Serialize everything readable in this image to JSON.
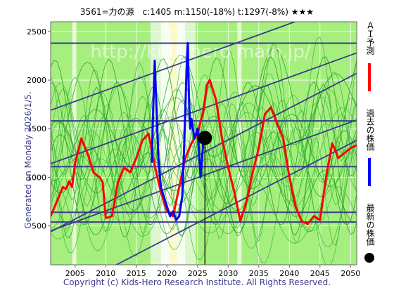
{
  "chart_data": {
    "type": "line",
    "title": "3561=力の源　c:1405  m:1150(-18%)  t:1297(-8%)  ★★★",
    "xlabel": "",
    "ylabel": "",
    "xlim": [
      2001,
      2051
    ],
    "ylim": [
      100,
      2600
    ],
    "x_ticks": [
      2005,
      2010,
      2015,
      2020,
      2025,
      2030,
      2035,
      2040,
      2045,
      2050
    ],
    "y_ticks": [
      500,
      1000,
      1500,
      2000,
      2500
    ],
    "watermark": "http://kids-hero.main.jp/",
    "horizontal_lines": [
      2380,
      1580,
      1110,
      640,
      540
    ],
    "trend_channels": [
      {
        "x": [
          2001,
          2051
        ],
        "y": [
          1690,
          2830
        ]
      },
      {
        "x": [
          2001,
          2051
        ],
        "y": [
          1140,
          2280
        ]
      },
      {
        "x": [
          2001,
          2051
        ],
        "y": [
          450,
          1590
        ]
      },
      {
        "x": [
          2001,
          2051
        ],
        "y": [
          440,
          2070
        ]
      },
      {
        "x": [
          2001,
          2051
        ],
        "y": [
          -250,
          1380
        ]
      }
    ],
    "now_marker": {
      "x": 2026.2,
      "y": 1405
    },
    "series": [
      {
        "name": "ＡＩ予測",
        "color": "#ff0000",
        "x": [
          2001.0,
          2002.0,
          2003.0,
          2003.5,
          2004.0,
          2004.5,
          2005.0,
          2006.0,
          2007.0,
          2008.0,
          2009.0,
          2009.5,
          2010.0,
          2011.0,
          2012.0,
          2013.0,
          2014.0,
          2015.0,
          2016.0,
          2017.0,
          2018.0,
          2019.0,
          2020.0,
          2021.0,
          2022.0,
          2023.0,
          2024.0,
          2025.0,
          2026.0,
          2026.5,
          2027.0,
          2028.0,
          2029.0,
          2030.0,
          2031.0,
          2032.0,
          2033.0,
          2034.0,
          2035.0,
          2036.0,
          2037.0,
          2038.0,
          2039.0,
          2040.0,
          2041.0,
          2042.0,
          2043.0,
          2044.0,
          2045.0,
          2046.0,
          2047.0,
          2048.0,
          2049.0,
          2050.0,
          2051.0
        ],
        "y": [
          600,
          750,
          900,
          880,
          960,
          900,
          1150,
          1400,
          1250,
          1050,
          1000,
          950,
          580,
          600,
          950,
          1100,
          1050,
          1200,
          1380,
          1450,
          1120,
          850,
          650,
          600,
          900,
          1200,
          1350,
          1450,
          1700,
          1950,
          2000,
          1800,
          1400,
          1100,
          850,
          550,
          750,
          1050,
          1300,
          1650,
          1720,
          1550,
          1400,
          1000,
          700,
          550,
          520,
          600,
          560,
          1000,
          1350,
          1200,
          1250,
          1300,
          1330
        ]
      },
      {
        "name": "過去の株価",
        "color": "#0000ff",
        "x": [
          2017.5,
          2017.8,
          2018.0,
          2018.3,
          2018.6,
          2019.0,
          2019.5,
          2020.0,
          2020.5,
          2021.0,
          2021.5,
          2022.0,
          2022.5,
          2022.8,
          2023.0,
          2023.2,
          2023.4,
          2023.6,
          2023.8,
          2024.0,
          2024.5,
          2025.0,
          2025.5,
          2026.0
        ],
        "y": [
          1150,
          1800,
          2200,
          1700,
          1200,
          900,
          800,
          700,
          600,
          650,
          560,
          600,
          800,
          1300,
          1700,
          2100,
          2380,
          1800,
          1500,
          1600,
          1400,
          1500,
          1000,
          1405
        ]
      }
    ]
  },
  "legend": [
    {
      "label": "ＡＩ予測",
      "color": "#ff0000"
    },
    {
      "label": "過去の株価",
      "color": "#0000ff"
    },
    {
      "label": "最新の株価",
      "color": "#000000"
    }
  ],
  "side_note": "Generated on Monday 2026/1/5.",
  "copyright": "Copyright (c) Kids-Hero Research Institute. All Rights Reserved."
}
